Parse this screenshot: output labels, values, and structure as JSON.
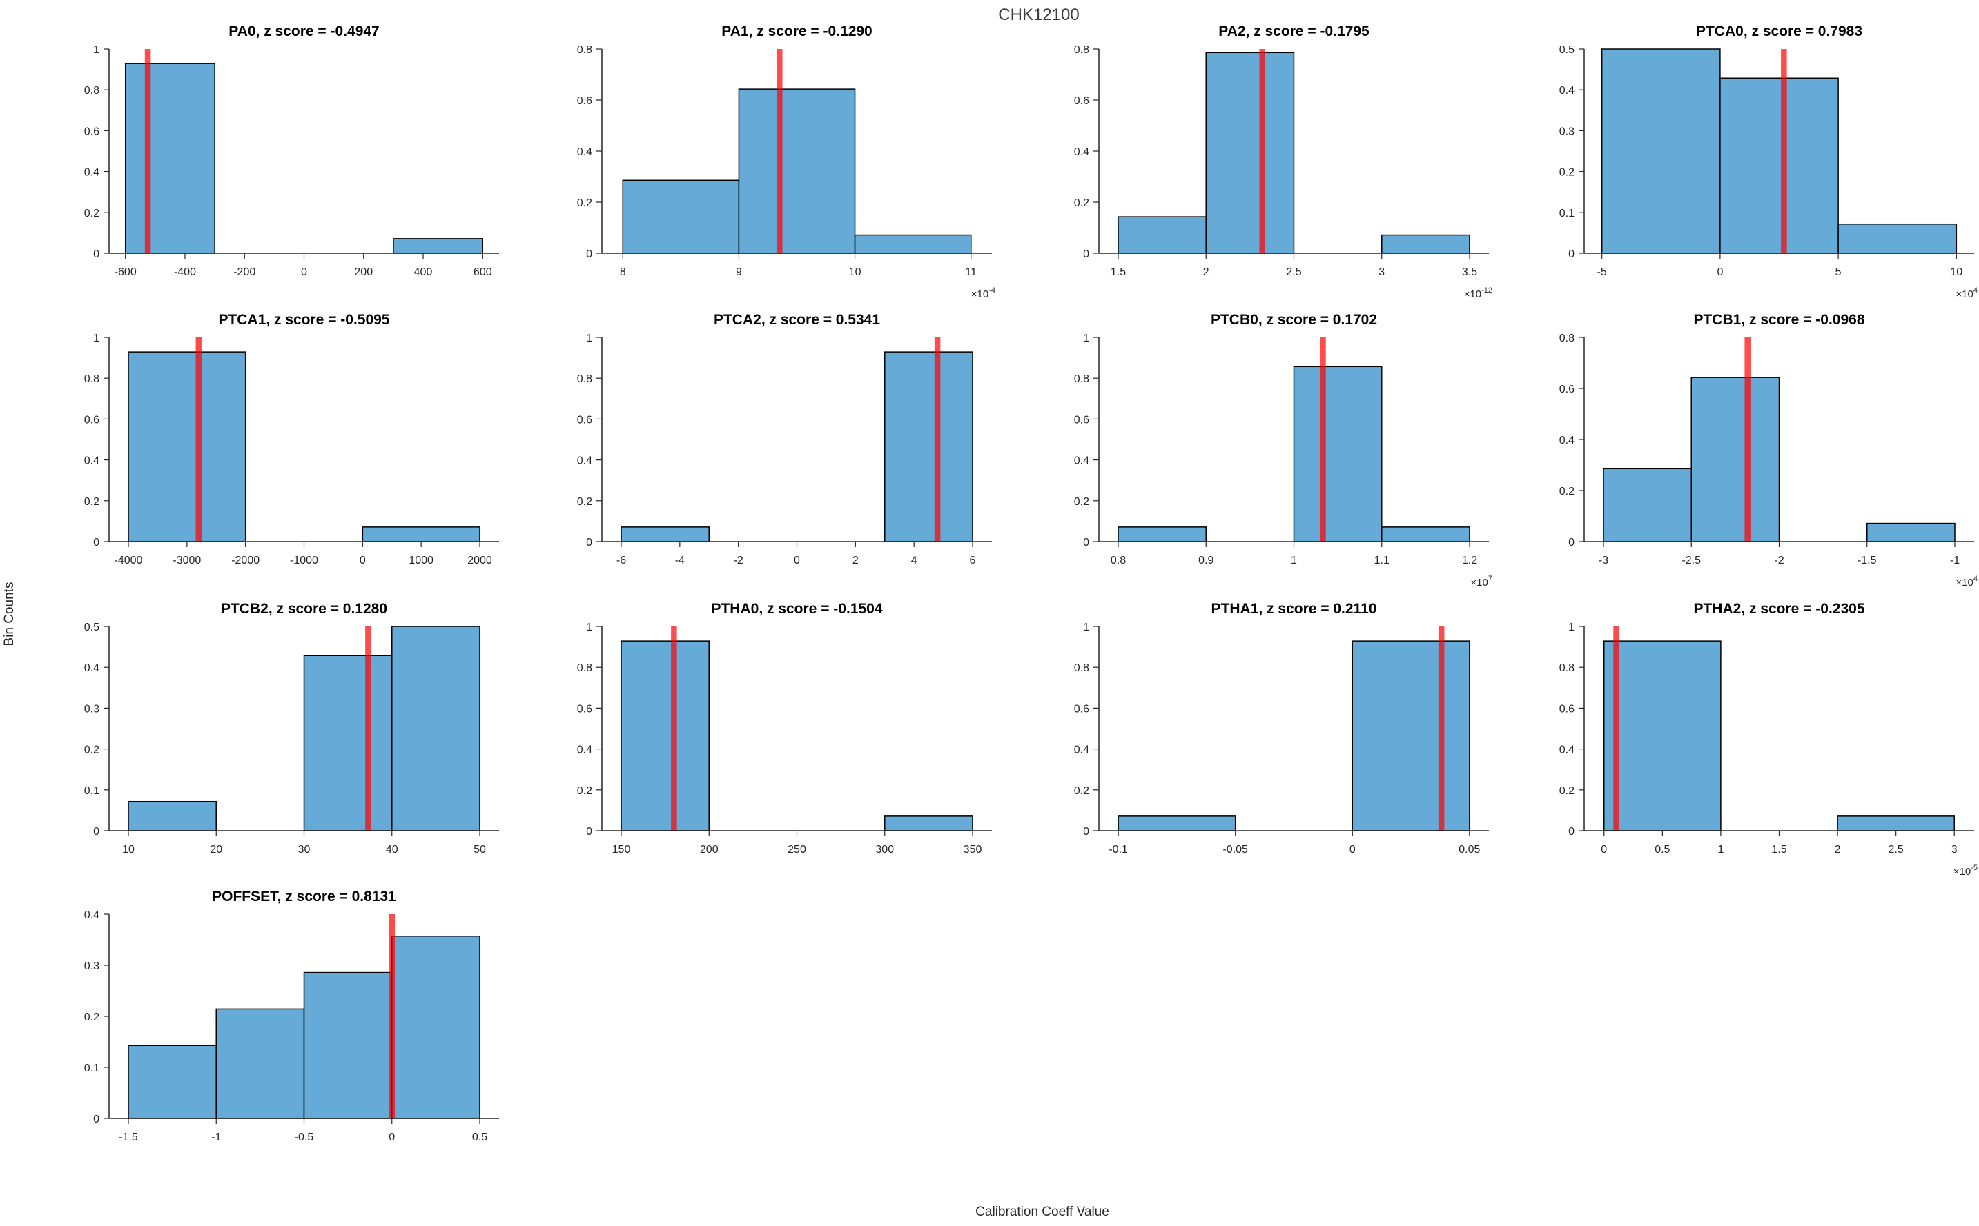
{
  "figure": {
    "title": "CHK12100",
    "xlabel": "Calibration Coeff Value",
    "ylabel": "Bin Counts"
  },
  "colors": {
    "bar_fill": "#66AAD7",
    "bar_edge": "#000000",
    "marker_line": "#FF0000",
    "marker_opacity": 0.7,
    "axis": "#262626",
    "tick_text": "#262626",
    "title_text": "#000000",
    "background": "#FFFFFF"
  },
  "chart_data": [
    {
      "type": "bar",
      "name": "PA0",
      "title": "PA0, z score = -0.4947",
      "z_score": -0.4947,
      "row": 0,
      "col": 0,
      "xlim": [
        -655,
        655
      ],
      "ylim": [
        0,
        1
      ],
      "xticks": [
        -600,
        -400,
        -200,
        0,
        200,
        400,
        600
      ],
      "xtick_labels": [
        "-600",
        "-400",
        "-200",
        "0",
        "200",
        "400",
        "600"
      ],
      "yticks": [
        0,
        0.2,
        0.4,
        0.6,
        0.8,
        1
      ],
      "ytick_labels": [
        "0",
        "0.2",
        "0.4",
        "0.6",
        "0.8",
        "1"
      ],
      "x_exponent": null,
      "bars": [
        {
          "x0": -600,
          "x1": -300,
          "height": 0.9286
        },
        {
          "x0": 300,
          "x1": 600,
          "height": 0.0714
        }
      ],
      "marker_x": -525
    },
    {
      "type": "bar",
      "name": "PA1",
      "title": "PA1, z score = -0.1290",
      "z_score": -0.129,
      "row": 0,
      "col": 1,
      "xlim": [
        7.82,
        11.18
      ],
      "ylim": [
        0,
        0.8
      ],
      "xticks": [
        8,
        9,
        10,
        11
      ],
      "xtick_labels": [
        "8",
        "9",
        "10",
        "11"
      ],
      "yticks": [
        0,
        0.2,
        0.4,
        0.6,
        0.8
      ],
      "ytick_labels": [
        "0",
        "0.2",
        "0.4",
        "0.6",
        "0.8"
      ],
      "x_exponent": -4,
      "bars": [
        {
          "x0": 8,
          "x1": 9,
          "height": 0.2857
        },
        {
          "x0": 9,
          "x1": 10,
          "height": 0.6429
        },
        {
          "x0": 10,
          "x1": 11,
          "height": 0.0714
        }
      ],
      "marker_x": 9.35
    },
    {
      "type": "bar",
      "name": "PA2",
      "title": "PA2, z score = -0.1795",
      "z_score": -0.1795,
      "row": 0,
      "col": 2,
      "xlim": [
        1.39,
        3.61
      ],
      "ylim": [
        0,
        0.8
      ],
      "xticks": [
        1.5,
        2,
        2.5,
        3,
        3.5
      ],
      "xtick_labels": [
        "1.5",
        "2",
        "2.5",
        "3",
        "3.5"
      ],
      "yticks": [
        0,
        0.2,
        0.4,
        0.6,
        0.8
      ],
      "ytick_labels": [
        "0",
        "0.2",
        "0.4",
        "0.6",
        "0.8"
      ],
      "x_exponent": -12,
      "bars": [
        {
          "x0": 1.5,
          "x1": 2,
          "height": 0.1429
        },
        {
          "x0": 2,
          "x1": 2.5,
          "height": 0.7857
        },
        {
          "x0": 3,
          "x1": 3.5,
          "height": 0.0714
        }
      ],
      "marker_x": 2.32
    },
    {
      "type": "bar",
      "name": "PTCA0",
      "title": "PTCA0, z score = 0.7983",
      "z_score": 0.7983,
      "row": 0,
      "col": 3,
      "xlim": [
        -5.75,
        10.75
      ],
      "ylim": [
        0,
        0.5
      ],
      "xticks": [
        -5,
        0,
        5,
        10
      ],
      "xtick_labels": [
        "-5",
        "0",
        "5",
        "10"
      ],
      "yticks": [
        0,
        0.1,
        0.2,
        0.3,
        0.4,
        0.5
      ],
      "ytick_labels": [
        "0",
        "0.1",
        "0.2",
        "0.3",
        "0.4",
        "0.5"
      ],
      "x_exponent": 4,
      "bars": [
        {
          "x0": -5,
          "x1": 0,
          "height": 0.5
        },
        {
          "x0": 0,
          "x1": 5,
          "height": 0.4286
        },
        {
          "x0": 5,
          "x1": 10,
          "height": 0.0714
        }
      ],
      "marker_x": 2.7
    },
    {
      "type": "bar",
      "name": "PTCA1",
      "title": "PTCA1, z score = -0.5095",
      "z_score": -0.5095,
      "row": 1,
      "col": 0,
      "xlim": [
        -4330,
        2330
      ],
      "ylim": [
        0,
        1
      ],
      "xticks": [
        -4000,
        -3000,
        -2000,
        -1000,
        0,
        1000,
        2000
      ],
      "xtick_labels": [
        "-4000",
        "-3000",
        "-2000",
        "-1000",
        "0",
        "1000",
        "2000"
      ],
      "yticks": [
        0,
        0.2,
        0.4,
        0.6,
        0.8,
        1
      ],
      "ytick_labels": [
        "0",
        "0.2",
        "0.4",
        "0.6",
        "0.8",
        "1"
      ],
      "x_exponent": null,
      "bars": [
        {
          "x0": -4000,
          "x1": -2000,
          "height": 0.9286
        },
        {
          "x0": 0,
          "x1": 2000,
          "height": 0.0714
        }
      ],
      "marker_x": -2800
    },
    {
      "type": "bar",
      "name": "PTCA2",
      "title": "PTCA2, z score = 0.5341",
      "z_score": 0.5341,
      "row": 1,
      "col": 1,
      "xlim": [
        -6.66,
        6.66
      ],
      "ylim": [
        0,
        1
      ],
      "xticks": [
        -6,
        -4,
        -2,
        0,
        2,
        4,
        6
      ],
      "xtick_labels": [
        "-6",
        "-4",
        "-2",
        "0",
        "2",
        "4",
        "6"
      ],
      "yticks": [
        0,
        0.2,
        0.4,
        0.6,
        0.8,
        1
      ],
      "ytick_labels": [
        "0",
        "0.2",
        "0.4",
        "0.6",
        "0.8",
        "1"
      ],
      "x_exponent": null,
      "bars": [
        {
          "x0": -6,
          "x1": -3,
          "height": 0.0714
        },
        {
          "x0": 3,
          "x1": 6,
          "height": 0.9286
        }
      ],
      "marker_x": 4.8
    },
    {
      "type": "bar",
      "name": "PTCB0",
      "title": "PTCB0, z score = 0.1702",
      "z_score": 0.1702,
      "row": 1,
      "col": 2,
      "xlim": [
        0.778,
        1.222
      ],
      "ylim": [
        0,
        1
      ],
      "xticks": [
        0.8,
        0.9,
        1,
        1.1,
        1.2
      ],
      "xtick_labels": [
        "0.8",
        "0.9",
        "1",
        "1.1",
        "1.2"
      ],
      "yticks": [
        0,
        0.2,
        0.4,
        0.6,
        0.8,
        1
      ],
      "ytick_labels": [
        "0",
        "0.2",
        "0.4",
        "0.6",
        "0.8",
        "1"
      ],
      "x_exponent": 7,
      "bars": [
        {
          "x0": 0.8,
          "x1": 0.9,
          "height": 0.0714
        },
        {
          "x0": 1.0,
          "x1": 1.1,
          "height": 0.8571
        },
        {
          "x0": 1.1,
          "x1": 1.2,
          "height": 0.0714
        }
      ],
      "marker_x": 1.033
    },
    {
      "type": "bar",
      "name": "PTCB1",
      "title": "PTCB1, z score = -0.0968",
      "z_score": -0.0968,
      "row": 1,
      "col": 3,
      "xlim": [
        -3.11,
        -0.89
      ],
      "ylim": [
        0,
        0.8
      ],
      "xticks": [
        -3,
        -2.5,
        -2,
        -1.5,
        -1
      ],
      "xtick_labels": [
        "-3",
        "-2.5",
        "-2",
        "-1.5",
        "-1"
      ],
      "yticks": [
        0,
        0.2,
        0.4,
        0.6,
        0.8
      ],
      "ytick_labels": [
        "0",
        "0.2",
        "0.4",
        "0.6",
        "0.8"
      ],
      "x_exponent": 4,
      "bars": [
        {
          "x0": -3,
          "x1": -2.5,
          "height": 0.2857
        },
        {
          "x0": -2.5,
          "x1": -2,
          "height": 0.6429
        },
        {
          "x0": -1.5,
          "x1": -1,
          "height": 0.0714
        }
      ],
      "marker_x": -2.18
    },
    {
      "type": "bar",
      "name": "PTCB2",
      "title": "PTCB2, z score = 0.1280",
      "z_score": 0.128,
      "row": 2,
      "col": 0,
      "xlim": [
        7.8,
        52.2
      ],
      "ylim": [
        0,
        0.5
      ],
      "xticks": [
        10,
        20,
        30,
        40,
        50
      ],
      "xtick_labels": [
        "10",
        "20",
        "30",
        "40",
        "50"
      ],
      "yticks": [
        0,
        0.1,
        0.2,
        0.3,
        0.4,
        0.5
      ],
      "ytick_labels": [
        "0",
        "0.1",
        "0.2",
        "0.3",
        "0.4",
        "0.5"
      ],
      "x_exponent": null,
      "bars": [
        {
          "x0": 10,
          "x1": 20,
          "height": 0.0714
        },
        {
          "x0": 30,
          "x1": 40,
          "height": 0.4286
        },
        {
          "x0": 40,
          "x1": 50,
          "height": 0.5
        }
      ],
      "marker_x": 37.3
    },
    {
      "type": "bar",
      "name": "PTHA0",
      "title": "PTHA0, z score = -0.1504",
      "z_score": -0.1504,
      "row": 2,
      "col": 1,
      "xlim": [
        139,
        361
      ],
      "ylim": [
        0,
        1
      ],
      "xticks": [
        150,
        200,
        250,
        300,
        350
      ],
      "xtick_labels": [
        "150",
        "200",
        "250",
        "300",
        "350"
      ],
      "yticks": [
        0,
        0.2,
        0.4,
        0.6,
        0.8,
        1
      ],
      "ytick_labels": [
        "0",
        "0.2",
        "0.4",
        "0.6",
        "0.8",
        "1"
      ],
      "x_exponent": null,
      "bars": [
        {
          "x0": 150,
          "x1": 200,
          "height": 0.9286
        },
        {
          "x0": 300,
          "x1": 350,
          "height": 0.0714
        }
      ],
      "marker_x": 180
    },
    {
      "type": "bar",
      "name": "PTHA1",
      "title": "PTHA1, z score = 0.2110",
      "z_score": 0.211,
      "row": 2,
      "col": 2,
      "xlim": [
        -0.1083,
        0.0583
      ],
      "ylim": [
        0,
        1
      ],
      "xticks": [
        -0.1,
        -0.05,
        0,
        0.05
      ],
      "xtick_labels": [
        "-0.1",
        "-0.05",
        "0",
        "0.05"
      ],
      "yticks": [
        0,
        0.2,
        0.4,
        0.6,
        0.8,
        1
      ],
      "ytick_labels": [
        "0",
        "0.2",
        "0.4",
        "0.6",
        "0.8",
        "1"
      ],
      "x_exponent": null,
      "bars": [
        {
          "x0": -0.1,
          "x1": -0.05,
          "height": 0.0714
        },
        {
          "x0": 0,
          "x1": 0.05,
          "height": 0.9286
        }
      ],
      "marker_x": 0.038
    },
    {
      "type": "bar",
      "name": "PTHA2",
      "title": "PTHA2, z score = -0.2305",
      "z_score": -0.2305,
      "row": 2,
      "col": 3,
      "xlim": [
        -0.17,
        3.17
      ],
      "ylim": [
        0,
        1
      ],
      "xticks": [
        0,
        0.5,
        1,
        1.5,
        2,
        2.5,
        3
      ],
      "xtick_labels": [
        "0",
        "0.5",
        "1",
        "1.5",
        "2",
        "2.5",
        "3"
      ],
      "yticks": [
        0,
        0.2,
        0.4,
        0.6,
        0.8,
        1
      ],
      "ytick_labels": [
        "0",
        "0.2",
        "0.4",
        "0.6",
        "0.8",
        "1"
      ],
      "x_exponent": -5,
      "bars": [
        {
          "x0": 0,
          "x1": 1,
          "height": 0.9286
        },
        {
          "x0": 2,
          "x1": 3,
          "height": 0.0714
        }
      ],
      "marker_x": 0.105
    },
    {
      "type": "bar",
      "name": "POFFSET",
      "title": "POFFSET, z score = 0.8131",
      "z_score": 0.8131,
      "row": 3,
      "col": 0,
      "xlim": [
        -1.61,
        0.61
      ],
      "ylim": [
        0,
        0.4
      ],
      "xticks": [
        -1.5,
        -1,
        -0.5,
        0,
        0.5
      ],
      "xtick_labels": [
        "-1.5",
        "-1",
        "-0.5",
        "0",
        "0.5"
      ],
      "yticks": [
        0,
        0.1,
        0.2,
        0.3,
        0.4
      ],
      "ytick_labels": [
        "0",
        "0.1",
        "0.2",
        "0.3",
        "0.4"
      ],
      "x_exponent": null,
      "bars": [
        {
          "x0": -1.5,
          "x1": -1,
          "height": 0.1429
        },
        {
          "x0": -1,
          "x1": -0.5,
          "height": 0.2143
        },
        {
          "x0": -0.5,
          "x1": 0,
          "height": 0.2857
        },
        {
          "x0": 0,
          "x1": 0.5,
          "height": 0.3571
        }
      ],
      "marker_x": 0.0
    }
  ]
}
